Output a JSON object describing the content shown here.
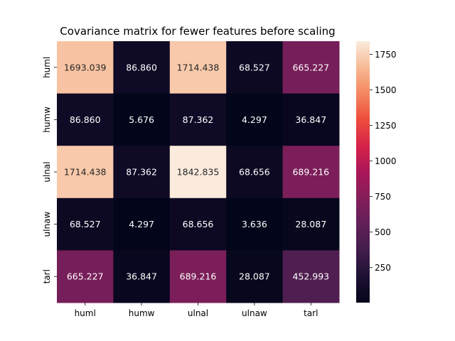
{
  "chart_data": {
    "type": "heatmap",
    "title": "Covariance matrix for fewer features before scaling",
    "xlabel": "",
    "ylabel": "",
    "x_categories": [
      "huml",
      "humw",
      "ulnal",
      "ulnaw",
      "tarl"
    ],
    "y_categories": [
      "huml",
      "humw",
      "ulnal",
      "ulnaw",
      "tarl"
    ],
    "values": [
      [
        1693.039,
        86.86,
        1714.438,
        68.527,
        665.227
      ],
      [
        86.86,
        5.676,
        87.362,
        4.297,
        36.847
      ],
      [
        1714.438,
        87.362,
        1842.835,
        68.656,
        689.216
      ],
      [
        68.527,
        4.297,
        68.656,
        3.636,
        28.087
      ],
      [
        665.227,
        36.847,
        689.216,
        28.087,
        452.993
      ]
    ],
    "value_format": "0.000",
    "colormap": "rocket",
    "colorbar": {
      "vmin": 3.636,
      "vmax": 1842.835,
      "ticks": [
        250,
        500,
        750,
        1000,
        1250,
        1500,
        1750
      ]
    },
    "grid": false
  }
}
